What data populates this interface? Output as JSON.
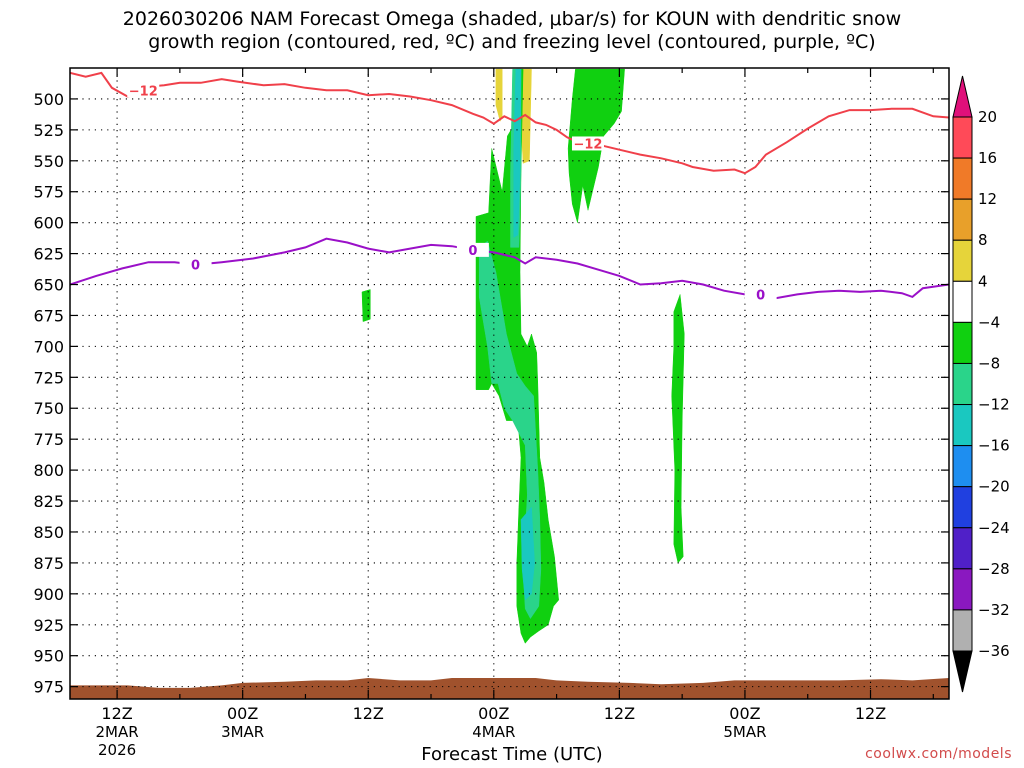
{
  "title": {
    "line1": "2026030206 NAM Forecast Omega (shaded, μbar/s) for KOUN with dendritic snow",
    "line2": "growth region (contoured, red, ºC) and freezing level (contoured, purple, ºC)"
  },
  "credit": "coolwx.com/models",
  "chart_data": {
    "type": "heatmap",
    "xlabel": "Forecast Time (UTC)",
    "x_range_hours": [
      -16.5,
      67.5
    ],
    "y_range_mb": [
      475,
      985
    ],
    "y_ticks": [
      500,
      525,
      550,
      575,
      600,
      625,
      650,
      675,
      700,
      725,
      750,
      775,
      800,
      825,
      850,
      875,
      900,
      925,
      950,
      975
    ],
    "x_ticks": [
      {
        "hour": -12,
        "label": "12Z",
        "date": "2MAR",
        "year": "2026"
      },
      {
        "hour": 0,
        "label": "00Z",
        "date": "3MAR",
        "year": ""
      },
      {
        "hour": 12,
        "label": "12Z",
        "date": "",
        "year": ""
      },
      {
        "hour": 24,
        "label": "00Z",
        "date": "4MAR",
        "year": ""
      },
      {
        "hour": 36,
        "label": "12Z",
        "date": "",
        "year": ""
      },
      {
        "hour": 48,
        "label": "00Z",
        "date": "5MAR",
        "year": ""
      },
      {
        "hour": 60,
        "label": "12Z",
        "date": "",
        "year": ""
      }
    ],
    "grid": true,
    "colorbar": {
      "labels": [
        "20",
        "16",
        "12",
        "8",
        "4",
        "−4",
        "−8",
        "−12",
        "−16",
        "−20",
        "−24",
        "−28",
        "−32",
        "−36"
      ],
      "colors": [
        "#ff4a58",
        "#f07a28",
        "#e8a02a",
        "#e6d43a",
        "#ffffff",
        "#10d010",
        "#2ad48a",
        "#1ac8c0",
        "#1e8ef0",
        "#2040e0",
        "#5020c8",
        "#8a18c0",
        "#b0b0b0"
      ],
      "top_arrow_color": "#e0107a",
      "bottom_arrow_color": "#000000"
    },
    "contours": [
      {
        "label": "−12",
        "color": "#f0404a",
        "label_positions_hour": [
          -9.5,
          33
        ],
        "points": [
          [
            -16.5,
            479
          ],
          [
            -15,
            482
          ],
          [
            -13.5,
            479
          ],
          [
            -12.5,
            491
          ],
          [
            -11,
            498
          ],
          [
            -10,
            496
          ],
          [
            -9,
            490
          ],
          [
            -7.5,
            489
          ],
          [
            -6,
            487
          ],
          [
            -4,
            487
          ],
          [
            -2,
            484
          ],
          [
            -0.5,
            486
          ],
          [
            2,
            489
          ],
          [
            4,
            488
          ],
          [
            6,
            491
          ],
          [
            8,
            493
          ],
          [
            10,
            493
          ],
          [
            12,
            497
          ],
          [
            14,
            496
          ],
          [
            16,
            498
          ],
          [
            18,
            501
          ],
          [
            20,
            505
          ],
          [
            22,
            512
          ],
          [
            23,
            515
          ],
          [
            24,
            520
          ],
          [
            25,
            514
          ],
          [
            26,
            518
          ],
          [
            27,
            513
          ],
          [
            28,
            519
          ],
          [
            29,
            521
          ],
          [
            30,
            525
          ],
          [
            31,
            531
          ],
          [
            32,
            535
          ],
          [
            34,
            537
          ],
          [
            36,
            541
          ],
          [
            38,
            545
          ],
          [
            40,
            548
          ],
          [
            42,
            552
          ],
          [
            43,
            555
          ],
          [
            45,
            558
          ],
          [
            47,
            557
          ],
          [
            48,
            560
          ],
          [
            49,
            555
          ],
          [
            50,
            545
          ],
          [
            52,
            535
          ],
          [
            54,
            524
          ],
          [
            56,
            514
          ],
          [
            58,
            509
          ],
          [
            60,
            509
          ],
          [
            62,
            508
          ],
          [
            64,
            508
          ],
          [
            66,
            514
          ],
          [
            67.5,
            515
          ]
        ]
      },
      {
        "label": "0",
        "color": "#9a10c8",
        "label_positions_hour": [
          -4.5,
          22,
          49.5
        ],
        "points": [
          [
            -16.5,
            650
          ],
          [
            -14,
            643
          ],
          [
            -11.5,
            637
          ],
          [
            -9,
            632
          ],
          [
            -6.5,
            632
          ],
          [
            -4.5,
            634
          ],
          [
            -2,
            632
          ],
          [
            1,
            629
          ],
          [
            4,
            624
          ],
          [
            6,
            620
          ],
          [
            8,
            613
          ],
          [
            10,
            616
          ],
          [
            12,
            621
          ],
          [
            14,
            624
          ],
          [
            16,
            621
          ],
          [
            18,
            618
          ],
          [
            20,
            619
          ],
          [
            22,
            622
          ],
          [
            24,
            624
          ],
          [
            26,
            628
          ],
          [
            27,
            633
          ],
          [
            28,
            628
          ],
          [
            30,
            630
          ],
          [
            32,
            633
          ],
          [
            34,
            638
          ],
          [
            36,
            643
          ],
          [
            38,
            650
          ],
          [
            40,
            649
          ],
          [
            42,
            647
          ],
          [
            44,
            650
          ],
          [
            46,
            655
          ],
          [
            48,
            658
          ],
          [
            49.5,
            658
          ],
          [
            51,
            661
          ],
          [
            53,
            658
          ],
          [
            55,
            656
          ],
          [
            57,
            655
          ],
          [
            59,
            656
          ],
          [
            61,
            655
          ],
          [
            63,
            657
          ],
          [
            64,
            660
          ],
          [
            65,
            653
          ],
          [
            67.5,
            650
          ]
        ]
      }
    ],
    "omega_regions": [
      {
        "color": "#e6d43a",
        "pts": [
          [
            24.2,
            476
          ],
          [
            24.8,
            476
          ],
          [
            24.8,
            515
          ],
          [
            24.6,
            518
          ],
          [
            24.2,
            505
          ]
        ]
      },
      {
        "color": "#e6d43a",
        "pts": [
          [
            26.6,
            476
          ],
          [
            27.6,
            476
          ],
          [
            27.4,
            550
          ],
          [
            26.8,
            552
          ],
          [
            26.6,
            520
          ]
        ]
      },
      {
        "color": "#10d010",
        "pts": [
          [
            31.8,
            476
          ],
          [
            36.5,
            476
          ],
          [
            36.2,
            510
          ],
          [
            35.5,
            520
          ],
          [
            34.5,
            530
          ],
          [
            34,
            555
          ],
          [
            33,
            590
          ],
          [
            32.5,
            570
          ],
          [
            32,
            600
          ],
          [
            31.5,
            585
          ],
          [
            31.2,
            560
          ],
          [
            31.1,
            540
          ],
          [
            31.3,
            520
          ],
          [
            31.5,
            500
          ]
        ]
      },
      {
        "color": "#10d010",
        "pts": [
          [
            22.3,
            595
          ],
          [
            23.5,
            592
          ],
          [
            23.8,
            540
          ],
          [
            24.8,
            575
          ],
          [
            25.3,
            530
          ],
          [
            26,
            520
          ],
          [
            26.2,
            476
          ],
          [
            26.8,
            476
          ],
          [
            26.6,
            560
          ],
          [
            26.5,
            640
          ],
          [
            26.6,
            690
          ],
          [
            27.2,
            700
          ],
          [
            27.6,
            690
          ],
          [
            28.1,
            705
          ],
          [
            28.2,
            730
          ],
          [
            28.4,
            790
          ],
          [
            28.8,
            810
          ],
          [
            29.2,
            840
          ],
          [
            29.8,
            870
          ],
          [
            30.2,
            905
          ],
          [
            29.7,
            910
          ],
          [
            29.2,
            925
          ],
          [
            28.3,
            930
          ],
          [
            27.5,
            935
          ],
          [
            27,
            940
          ],
          [
            26.6,
            932
          ],
          [
            26.2,
            910
          ],
          [
            26.2,
            875
          ],
          [
            26.4,
            830
          ],
          [
            26.6,
            790
          ],
          [
            26.4,
            770
          ],
          [
            26.2,
            760
          ],
          [
            25.2,
            760
          ],
          [
            24.5,
            740
          ],
          [
            23.8,
            730
          ],
          [
            23.5,
            735
          ],
          [
            22.3,
            735
          ]
        ]
      },
      {
        "color": "#2ad48a",
        "pts": [
          [
            22.6,
            620
          ],
          [
            23.4,
            615
          ],
          [
            24.2,
            640
          ],
          [
            25.2,
            690
          ],
          [
            26.2,
            722
          ],
          [
            27,
            732
          ],
          [
            27.8,
            740
          ],
          [
            28.2,
            800
          ],
          [
            28.4,
            840
          ],
          [
            28.5,
            880
          ],
          [
            28.3,
            910
          ],
          [
            27.5,
            920
          ],
          [
            27,
            912
          ],
          [
            26.8,
            880
          ],
          [
            27.2,
            820
          ],
          [
            27,
            780
          ],
          [
            25.8,
            760
          ],
          [
            25,
            750
          ],
          [
            24.4,
            730
          ],
          [
            23.8,
            730
          ],
          [
            23.4,
            700
          ],
          [
            23,
            680
          ],
          [
            22.6,
            660
          ]
        ]
      },
      {
        "color": "#2ad48a",
        "pts": [
          [
            25.8,
            476
          ],
          [
            26.6,
            476
          ],
          [
            26.6,
            560
          ],
          [
            26.4,
            620
          ],
          [
            25.6,
            620
          ],
          [
            25.6,
            560
          ]
        ]
      },
      {
        "color": "#1ac8c0",
        "pts": [
          [
            26.1,
            476
          ],
          [
            26.6,
            476
          ],
          [
            26.5,
            560
          ],
          [
            26.3,
            610
          ],
          [
            25.9,
            612
          ],
          [
            25.9,
            540
          ]
        ]
      },
      {
        "color": "#1ac8c0",
        "pts": [
          [
            26.6,
            840
          ],
          [
            27.6,
            830
          ],
          [
            27.9,
            875
          ],
          [
            27.6,
            900
          ],
          [
            27,
            905
          ],
          [
            26.7,
            880
          ]
        ]
      },
      {
        "color": "#10d010",
        "pts": [
          [
            11.4,
            656
          ],
          [
            12.2,
            654
          ],
          [
            12.2,
            678
          ],
          [
            11.5,
            680
          ]
        ]
      },
      {
        "color": "#10d010",
        "pts": [
          [
            41.2,
            672
          ],
          [
            41.8,
            658
          ],
          [
            42.2,
            690
          ],
          [
            42,
            760
          ],
          [
            41.9,
            830
          ],
          [
            42.1,
            870
          ],
          [
            41.6,
            875
          ],
          [
            41.2,
            860
          ],
          [
            41.3,
            800
          ],
          [
            41,
            740
          ],
          [
            41.2,
            700
          ]
        ]
      }
    ],
    "terrain": {
      "color": "#a0522d",
      "top_points": [
        [
          -16.5,
          974
        ],
        [
          -11,
          974
        ],
        [
          -8,
          976
        ],
        [
          -5,
          976
        ],
        [
          -2,
          974
        ],
        [
          0,
          972
        ],
        [
          4,
          971
        ],
        [
          7,
          970
        ],
        [
          10,
          970
        ],
        [
          12,
          968
        ],
        [
          15,
          970
        ],
        [
          18,
          970
        ],
        [
          20,
          968
        ],
        [
          24,
          968
        ],
        [
          28,
          968
        ],
        [
          30,
          970
        ],
        [
          33,
          971
        ],
        [
          37,
          972
        ],
        [
          40,
          973
        ],
        [
          44,
          972
        ],
        [
          47,
          970
        ],
        [
          50,
          970
        ],
        [
          53,
          970
        ],
        [
          57,
          970
        ],
        [
          61,
          969
        ],
        [
          64,
          970
        ],
        [
          67.5,
          968
        ]
      ]
    }
  }
}
